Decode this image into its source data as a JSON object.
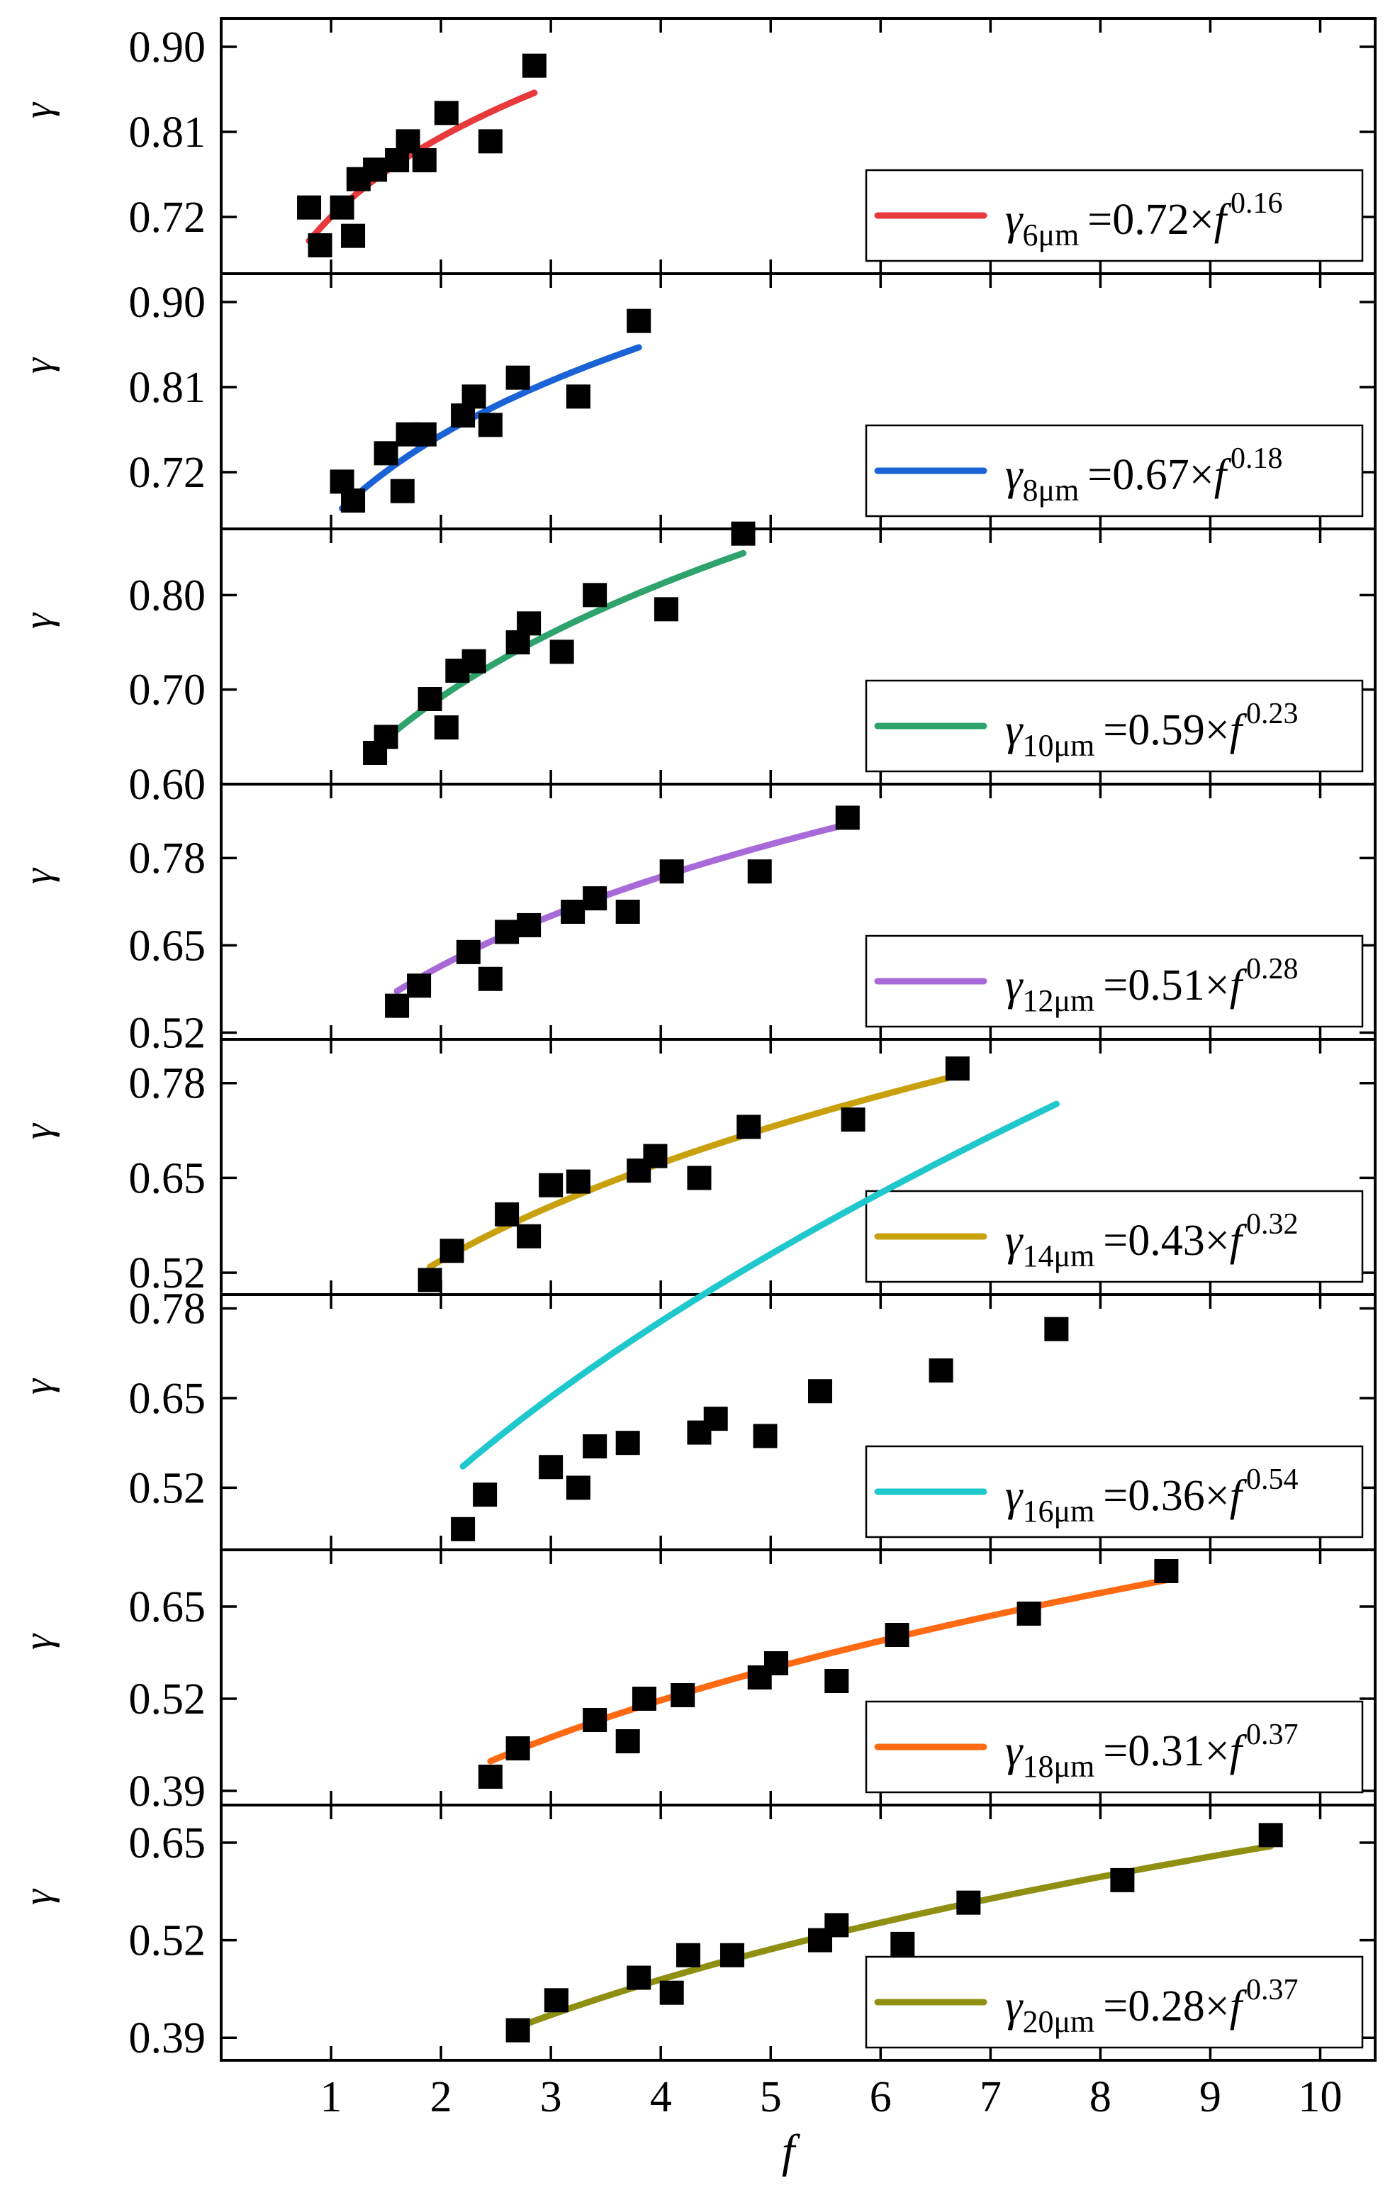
{
  "chart_data": {
    "type": "scatter",
    "title": "",
    "xlabel": "f",
    "ylabel": "γ",
    "xlim": [
      0.0,
      10.5
    ],
    "xticks": [
      1,
      2,
      3,
      4,
      5,
      6,
      7,
      8,
      9,
      10
    ],
    "xtick_labels": [
      "1",
      "2",
      "3",
      "4",
      "5",
      "6",
      "7",
      "8",
      "9",
      "10"
    ],
    "legend_position": "bottom-right",
    "panels": [
      {
        "name": "6um",
        "color": "#e8393c",
        "ylim": [
          0.66,
          0.93
        ],
        "yticks": [
          0.72,
          0.81,
          0.9
        ],
        "ytick_labels": [
          "0.72",
          "0.81",
          "0.90"
        ],
        "legend": {
          "gamma": "γ",
          "sub": "6μm",
          "eq": "=0.72×",
          "f": "f",
          "exp": "0.16"
        },
        "fit": {
          "a": 0.72,
          "b": 0.16,
          "x_start": 0.8,
          "x_end": 2.85
        },
        "points": [
          [
            0.8,
            0.73
          ],
          [
            0.9,
            0.69
          ],
          [
            1.1,
            0.73
          ],
          [
            1.2,
            0.7
          ],
          [
            1.25,
            0.76
          ],
          [
            1.4,
            0.77
          ],
          [
            1.6,
            0.78
          ],
          [
            1.7,
            0.8
          ],
          [
            1.85,
            0.78
          ],
          [
            2.05,
            0.83
          ],
          [
            2.45,
            0.8
          ],
          [
            2.85,
            0.88
          ]
        ]
      },
      {
        "name": "8um",
        "color": "#1a63d6",
        "ylim": [
          0.66,
          0.93
        ],
        "yticks": [
          0.72,
          0.81,
          0.9
        ],
        "ytick_labels": [
          "0.72",
          "0.81",
          "0.90"
        ],
        "legend": {
          "gamma": "γ",
          "sub": "8μm",
          "eq": "=0.67×",
          "f": "f",
          "exp": "0.18"
        },
        "fit": {
          "a": 0.67,
          "b": 0.18,
          "x_start": 1.1,
          "x_end": 3.8
        },
        "points": [
          [
            1.1,
            0.71
          ],
          [
            1.2,
            0.69
          ],
          [
            1.5,
            0.74
          ],
          [
            1.65,
            0.7
          ],
          [
            1.7,
            0.76
          ],
          [
            1.85,
            0.76
          ],
          [
            2.2,
            0.78
          ],
          [
            2.3,
            0.8
          ],
          [
            2.45,
            0.77
          ],
          [
            2.7,
            0.82
          ],
          [
            3.25,
            0.8
          ],
          [
            3.8,
            0.88
          ]
        ]
      },
      {
        "name": "10um",
        "color": "#2ea36b",
        "ylim": [
          0.6,
          0.87
        ],
        "yticks": [
          0.6,
          0.7,
          0.8
        ],
        "ytick_labels": [
          "0.60",
          "0.70",
          "0.80"
        ],
        "legend": {
          "gamma": "γ",
          "sub": "10μm",
          "eq": "=0.59×",
          "f": "f",
          "exp": "0.23"
        },
        "fit": {
          "a": 0.59,
          "b": 0.23,
          "x_start": 1.4,
          "x_end": 4.75
        },
        "points": [
          [
            1.4,
            0.633
          ],
          [
            1.5,
            0.65
          ],
          [
            1.9,
            0.69
          ],
          [
            2.05,
            0.66
          ],
          [
            2.15,
            0.72
          ],
          [
            2.3,
            0.73
          ],
          [
            2.7,
            0.75
          ],
          [
            2.8,
            0.77
          ],
          [
            3.1,
            0.74
          ],
          [
            3.4,
            0.8
          ],
          [
            4.05,
            0.785
          ],
          [
            4.75,
            0.865
          ]
        ]
      },
      {
        "name": "12um",
        "color": "#a86ad8",
        "ylim": [
          0.51,
          0.89
        ],
        "yticks": [
          0.52,
          0.65,
          0.78
        ],
        "ytick_labels": [
          "0.52",
          "0.65",
          "0.78"
        ],
        "legend": {
          "gamma": "γ",
          "sub": "12μm",
          "eq": "=0.51×",
          "f": "f",
          "exp": "0.28"
        },
        "fit": {
          "a": 0.51,
          "b": 0.28,
          "x_start": 1.6,
          "x_end": 5.7
        },
        "points": [
          [
            1.6,
            0.56
          ],
          [
            1.8,
            0.59
          ],
          [
            2.25,
            0.64
          ],
          [
            2.45,
            0.6
          ],
          [
            2.6,
            0.67
          ],
          [
            2.8,
            0.68
          ],
          [
            3.2,
            0.7
          ],
          [
            3.4,
            0.72
          ],
          [
            3.7,
            0.7
          ],
          [
            4.1,
            0.76
          ],
          [
            4.9,
            0.76
          ],
          [
            5.7,
            0.84
          ]
        ]
      },
      {
        "name": "14um",
        "color": "#c9a00e",
        "ylim": [
          0.49,
          0.84
        ],
        "yticks": [
          0.52,
          0.65,
          0.78
        ],
        "ytick_labels": [
          "0.52",
          "0.65",
          "0.78"
        ],
        "legend": {
          "gamma": "γ",
          "sub": "14μm",
          "eq": "=0.43×",
          "f": "f",
          "exp": "0.32"
        },
        "fit": {
          "a": 0.43,
          "b": 0.32,
          "x_start": 1.9,
          "x_end": 6.7
        },
        "points": [
          [
            1.9,
            0.51
          ],
          [
            2.1,
            0.55
          ],
          [
            2.6,
            0.6
          ],
          [
            2.8,
            0.57
          ],
          [
            3.0,
            0.64
          ],
          [
            3.25,
            0.645
          ],
          [
            3.8,
            0.66
          ],
          [
            3.95,
            0.68
          ],
          [
            4.35,
            0.65
          ],
          [
            4.8,
            0.72
          ],
          [
            5.75,
            0.73
          ],
          [
            6.7,
            0.8
          ]
        ]
      },
      {
        "name": "16um",
        "color": "#1fc8cc",
        "ylim": [
          0.43,
          0.8
        ],
        "yticks": [
          0.52,
          0.65,
          0.78
        ],
        "ytick_labels": [
          "0.52",
          "0.65",
          "0.78"
        ],
        "legend": {
          "gamma": "γ",
          "sub": "16μm",
          "eq": "=0.36×",
          "f": "f",
          "exp": "0.54"
        },
        "fit": {
          "a": 0.36,
          "b": 0.54,
          "x_start": 2.2,
          "x_end": 7.6
        },
        "points": [
          [
            2.2,
            0.46
          ],
          [
            2.4,
            0.51
          ],
          [
            3.0,
            0.55
          ],
          [
            3.25,
            0.52
          ],
          [
            3.4,
            0.58
          ],
          [
            3.7,
            0.585
          ],
          [
            4.35,
            0.6
          ],
          [
            4.5,
            0.62
          ],
          [
            4.95,
            0.595
          ],
          [
            5.45,
            0.66
          ],
          [
            6.55,
            0.69
          ],
          [
            7.6,
            0.75
          ]
        ]
      },
      {
        "name": "18um",
        "color": "#ff6a13",
        "ylim": [
          0.37,
          0.73
        ],
        "yticks": [
          0.39,
          0.52,
          0.65
        ],
        "ytick_labels": [
          "0.39",
          "0.52",
          "0.65"
        ],
        "legend": {
          "gamma": "γ",
          "sub": "18μm",
          "eq": "=0.31×",
          "f": "f",
          "exp": "0.37"
        },
        "fit": {
          "a": 0.31,
          "b": 0.37,
          "x_start": 2.45,
          "x_end": 8.6
        },
        "points": [
          [
            2.45,
            0.41
          ],
          [
            2.7,
            0.45
          ],
          [
            3.4,
            0.49
          ],
          [
            3.7,
            0.46
          ],
          [
            3.85,
            0.52
          ],
          [
            4.2,
            0.525
          ],
          [
            4.9,
            0.55
          ],
          [
            5.05,
            0.57
          ],
          [
            5.6,
            0.545
          ],
          [
            6.15,
            0.61
          ],
          [
            7.35,
            0.64
          ],
          [
            8.6,
            0.7
          ]
        ]
      },
      {
        "name": "20um",
        "color": "#8f8f12",
        "ylim": [
          0.36,
          0.7
        ],
        "yticks": [
          0.39,
          0.52,
          0.65
        ],
        "ytick_labels": [
          "0.39",
          "0.52",
          "0.65"
        ],
        "legend": {
          "gamma": "γ",
          "sub": "20μm",
          "eq": "=0.28×",
          "f": "f",
          "exp": "0.37"
        },
        "fit": {
          "a": 0.28,
          "b": 0.37,
          "x_start": 2.7,
          "x_end": 9.55
        },
        "points": [
          [
            2.7,
            0.4
          ],
          [
            3.05,
            0.44
          ],
          [
            3.8,
            0.47
          ],
          [
            4.1,
            0.45
          ],
          [
            4.25,
            0.5
          ],
          [
            4.65,
            0.5
          ],
          [
            5.45,
            0.52
          ],
          [
            5.6,
            0.54
          ],
          [
            6.2,
            0.515
          ],
          [
            6.8,
            0.57
          ],
          [
            8.2,
            0.6
          ],
          [
            9.55,
            0.66
          ]
        ]
      }
    ]
  }
}
